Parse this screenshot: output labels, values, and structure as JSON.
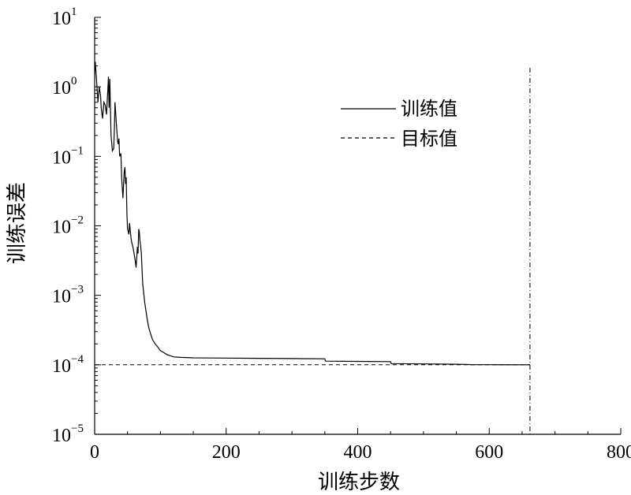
{
  "chart_data": {
    "type": "line",
    "xlabel": "训练步数",
    "ylabel": "训练误差",
    "xlim": [
      0,
      800
    ],
    "ylim": [
      1e-05,
      10
    ],
    "yscale": "log",
    "grid": false,
    "legend_position": "top-right",
    "x_ticks": [
      0,
      200,
      400,
      600,
      800
    ],
    "x_tick_labels": [
      "0",
      "200",
      "400",
      "600",
      "800"
    ],
    "y_ticks": [
      {
        "value": 10,
        "base": "10",
        "exp": "1"
      },
      {
        "value": 1,
        "base": "10",
        "exp": "0"
      },
      {
        "value": 0.1,
        "base": "10",
        "exp": "−1"
      },
      {
        "value": 0.01,
        "base": "10",
        "exp": "−2"
      },
      {
        "value": 0.001,
        "base": "10",
        "exp": "−3"
      },
      {
        "value": 0.0001,
        "base": "10",
        "exp": "−4"
      },
      {
        "value": 1e-05,
        "base": "10",
        "exp": "−5"
      }
    ],
    "series": [
      {
        "name": "训练值",
        "style": "solid",
        "x": [
          0,
          1,
          3,
          5,
          7,
          9,
          10,
          12,
          14,
          16,
          18,
          20,
          21,
          22,
          23,
          24,
          25,
          27,
          29,
          30,
          31,
          33,
          35,
          36,
          37,
          38,
          40,
          41,
          43,
          44,
          45,
          46,
          47,
          48,
          49,
          50,
          52,
          53,
          54,
          55,
          56,
          58,
          59,
          60,
          62,
          63,
          64,
          65,
          66,
          67,
          68,
          69,
          70,
          71,
          72,
          73,
          74,
          75,
          76,
          78,
          80,
          82,
          85,
          88,
          92,
          96,
          100,
          105,
          110,
          115,
          120,
          130,
          150,
          200,
          250,
          300,
          350,
          351,
          400,
          450,
          451,
          500,
          550,
          570,
          571,
          600,
          662
        ],
        "y": [
          1.5,
          2.3,
          1.2,
          0.6,
          1.0,
          0.75,
          0.5,
          0.35,
          0.6,
          0.55,
          0.4,
          0.9,
          1.4,
          0.5,
          1.3,
          0.5,
          0.2,
          0.12,
          0.13,
          0.25,
          0.6,
          0.3,
          0.16,
          0.15,
          0.18,
          0.1,
          0.11,
          0.05,
          0.025,
          0.04,
          0.06,
          0.07,
          0.04,
          0.05,
          0.015,
          0.009,
          0.0075,
          0.011,
          0.009,
          0.007,
          0.006,
          0.005,
          0.0045,
          0.004,
          0.003,
          0.0025,
          0.0035,
          0.005,
          0.004,
          0.009,
          0.008,
          0.006,
          0.005,
          0.004,
          0.0025,
          0.0015,
          0.0012,
          0.001,
          0.0008,
          0.0006,
          0.00045,
          0.00035,
          0.00028,
          0.00023,
          0.0002,
          0.00018,
          0.00016,
          0.00015,
          0.00014,
          0.000135,
          0.00013,
          0.000128,
          0.000126,
          0.000125,
          0.000124,
          0.000123,
          0.000122,
          0.000113,
          0.000112,
          0.000111,
          0.000104,
          0.000103,
          0.000102,
          0.000101,
          0.0001005,
          0.0001003,
          0.0001
        ]
      },
      {
        "name": "目标值",
        "style": "dashed",
        "x": [
          0,
          662
        ],
        "y": [
          0.0001,
          0.0001
        ]
      }
    ],
    "stop_line": {
      "x": 662,
      "style": "dash-dot"
    }
  }
}
